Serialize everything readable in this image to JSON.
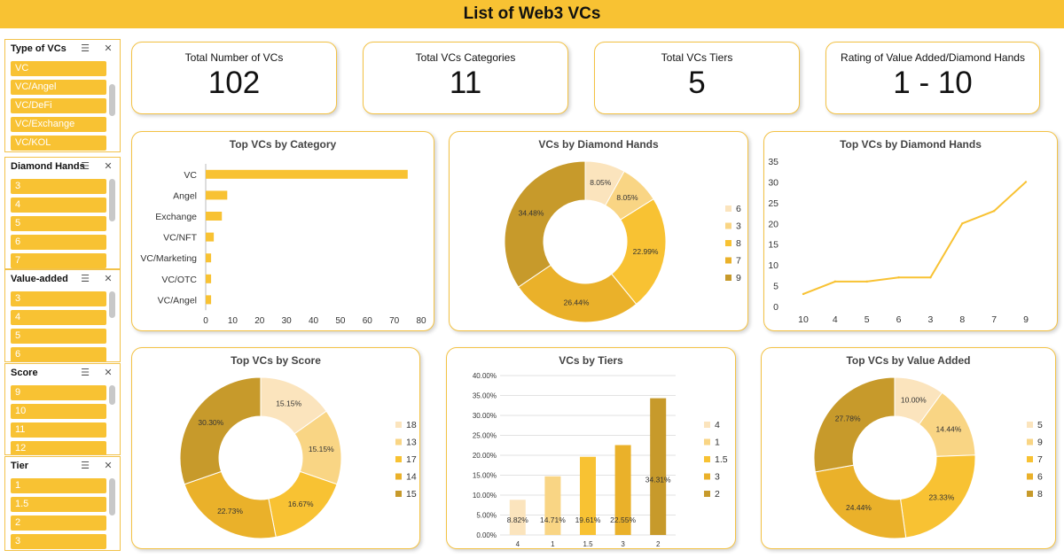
{
  "header": {
    "title": "List of Web3 VCs"
  },
  "colors": {
    "accent": "#f8c233",
    "shades": [
      "#fbe4bd",
      "#f9d584",
      "#f8c233",
      "#eab12a",
      "#c79a2b"
    ]
  },
  "slicers": [
    {
      "title": "Type of VCs",
      "items": [
        "VC",
        "VC/Angel",
        "VC/DeFi",
        "VC/Exchange",
        "VC/KOL"
      ]
    },
    {
      "title": "Diamond Hands",
      "items": [
        "3",
        "4",
        "5",
        "6",
        "7"
      ]
    },
    {
      "title": "Value-added",
      "items": [
        "3",
        "4",
        "5",
        "6"
      ]
    },
    {
      "title": "Score",
      "items": [
        "9",
        "10",
        "11",
        "12"
      ]
    },
    {
      "title": "Tier",
      "items": [
        "1",
        "1.5",
        "2",
        "3"
      ]
    }
  ],
  "kpis": [
    {
      "label": "Total Number of VCs",
      "value": "102"
    },
    {
      "label": "Total VCs Categories",
      "value": "11"
    },
    {
      "label": "Total VCs Tiers",
      "value": "5"
    },
    {
      "label": "Rating of Value Added/Diamond Hands",
      "value": "1 - 10"
    }
  ],
  "chart_data": [
    {
      "id": "category",
      "type": "bar",
      "orientation": "horizontal",
      "title": "Top VCs by Category",
      "categories": [
        "VC",
        "Angel",
        "Exchange",
        "VC/NFT",
        "VC/Marketing",
        "VC/OTC",
        "VC/Angel"
      ],
      "values": [
        75,
        8,
        6,
        3,
        2,
        2,
        2
      ],
      "ticks": [
        "0",
        "10",
        "20",
        "30",
        "40",
        "50",
        "60",
        "70",
        "80"
      ],
      "xlim": [
        0,
        80
      ]
    },
    {
      "id": "diamond_donut",
      "type": "pie",
      "title": "VCs by Diamond Hands",
      "labels": [
        "6",
        "3",
        "8",
        "7",
        "9"
      ],
      "values": [
        8.05,
        8.05,
        22.99,
        26.44,
        34.48
      ],
      "data_labels": [
        "8.05%",
        "8.05%",
        "22.99%",
        "26.44%",
        "34.48%"
      ]
    },
    {
      "id": "diamond_line",
      "type": "line",
      "title": "Top VCs by Diamond Hands",
      "categories": [
        "10",
        "4",
        "5",
        "6",
        "3",
        "8",
        "7",
        "9"
      ],
      "values": [
        3,
        6,
        6,
        7,
        7,
        20,
        23,
        30
      ],
      "ticks": [
        "0",
        "5",
        "10",
        "15",
        "20",
        "25",
        "30",
        "35"
      ],
      "ylim": [
        0,
        35
      ]
    },
    {
      "id": "score_donut",
      "type": "pie",
      "title": "Top VCs by Score",
      "labels": [
        "18",
        "13",
        "17",
        "14",
        "15"
      ],
      "values": [
        15.15,
        15.15,
        16.67,
        22.73,
        30.3
      ],
      "data_labels": [
        "15.15%",
        "15.15%",
        "16.67%",
        "22.73%",
        "30.30%"
      ]
    },
    {
      "id": "tiers",
      "type": "bar",
      "title": "VCs by Tiers",
      "categories": [
        "4",
        "1",
        "1.5",
        "3",
        "2"
      ],
      "values": [
        8.82,
        14.71,
        19.61,
        22.55,
        34.31
      ],
      "data_labels": [
        "8.82%",
        "14.71%",
        "19.61%",
        "22.55%",
        "34.31%"
      ],
      "legend": [
        "4",
        "1",
        "1.5",
        "3",
        "2"
      ],
      "ticks": [
        "0.00%",
        "5.00%",
        "10.00%",
        "15.00%",
        "20.00%",
        "25.00%",
        "30.00%",
        "35.00%",
        "40.00%"
      ],
      "ylim": [
        0,
        40
      ]
    },
    {
      "id": "value_donut",
      "type": "pie",
      "title": "Top VCs by Value Added",
      "labels": [
        "5",
        "9",
        "7",
        "6",
        "8"
      ],
      "values": [
        10.0,
        14.44,
        23.33,
        24.44,
        27.78
      ],
      "data_labels": [
        "10.00%",
        "14.44%",
        "23.33%",
        "24.44%",
        "27.78%"
      ]
    }
  ]
}
